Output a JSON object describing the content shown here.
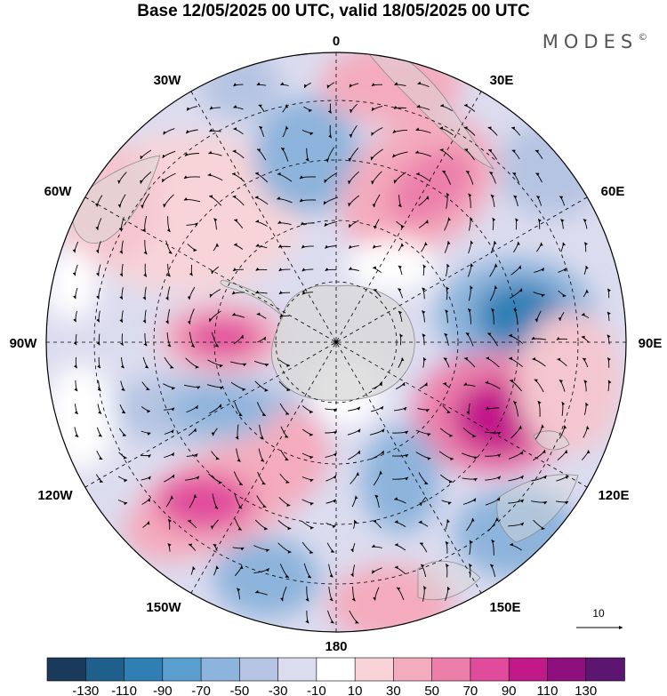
{
  "title": "Base 12/05/2025 00 UTC, valid 18/05/2025 00 UTC",
  "brand": {
    "name": "MODES",
    "mark": "©"
  },
  "longitude_labels": {
    "top": "0",
    "bottom": "180",
    "left": "90W",
    "right": "90E",
    "upper_left_1": "30W",
    "upper_left_2": "60W",
    "upper_right_1": "30E",
    "upper_right_2": "60E",
    "lower_left_1": "120W",
    "lower_left_2": "150W",
    "lower_right_1": "120E",
    "lower_right_2": "150E"
  },
  "reference_vector": {
    "label": "10"
  },
  "colorbar": {
    "ticks": [
      "-130",
      "-110",
      "-90",
      "-70",
      "-50",
      "-30",
      "-10",
      "10",
      "30",
      "50",
      "70",
      "90",
      "110",
      "130"
    ],
    "colors": [
      "#1a3a5c",
      "#1f5f8b",
      "#2f7fb5",
      "#5a9fcf",
      "#8db4dc",
      "#b5c4e2",
      "#dcdcef",
      "#ffffff",
      "#f8d4d8",
      "#f4abbd",
      "#ec7faa",
      "#e14b9c",
      "#c2198a",
      "#8e0f7e",
      "#5c1570"
    ]
  },
  "colors": {
    "land": "#d9d9d9",
    "coast": "#8a8a8a",
    "grid": "#000000"
  },
  "anomaly_features": [
    {
      "type": "positive",
      "level": 90,
      "lon_label": "110E"
    },
    {
      "type": "negative",
      "level": -90,
      "lon_label": "80E"
    },
    {
      "type": "positive",
      "level": 90,
      "lon_label": "90W"
    },
    {
      "type": "positive",
      "level": 70,
      "lon_label": "125W"
    },
    {
      "type": "negative",
      "level": -50,
      "lon_label": "15W"
    },
    {
      "type": "negative",
      "level": -50,
      "lon_label": "105W"
    },
    {
      "type": "positive",
      "level": 70,
      "lon_label": "35E"
    },
    {
      "type": "negative",
      "level": -50,
      "lon_label": "130E"
    }
  ]
}
